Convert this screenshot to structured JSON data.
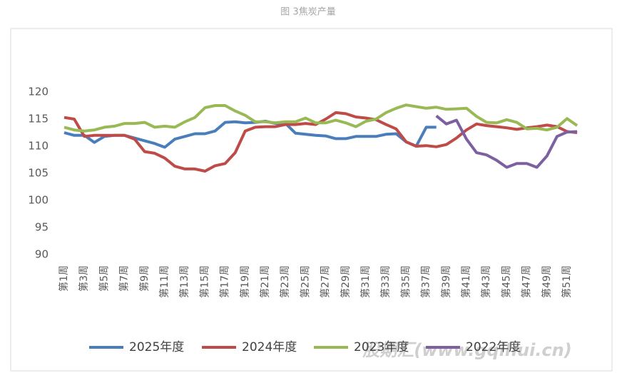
{
  "chart_data": {
    "type": "line",
    "title": "图 3焦炭产量",
    "watermark": "股期汇(www.gqihui.cn)",
    "categories": [
      "第1周",
      null,
      "第3周",
      null,
      "第5周",
      null,
      "第7周",
      null,
      "第9周",
      null,
      "第11周",
      null,
      "第13周",
      null,
      "第15周",
      null,
      "第17周",
      null,
      "第19周",
      null,
      "第21周",
      null,
      "第23周",
      null,
      "第25周",
      null,
      "第27周",
      null,
      "第29周",
      null,
      "第31周",
      null,
      "第33周",
      null,
      "第35周",
      null,
      "第37周",
      null,
      "第39周",
      null,
      "第41周",
      null,
      "第43周",
      null,
      "第45周",
      null,
      "第47周",
      null,
      "第49周",
      null,
      "第51周",
      null
    ],
    "ylim": [
      90,
      120
    ],
    "yticks": [
      90,
      95,
      100,
      105,
      110,
      115,
      120
    ],
    "grid": false,
    "series": [
      {
        "name": "2025年度",
        "color": "#4a7ebb",
        "values": [
          112.5,
          112,
          112,
          110.7,
          111.8,
          112,
          112,
          111.5,
          111,
          110.5,
          109.8,
          111.3,
          111.8,
          112.3,
          112.3,
          112.8,
          114.4,
          114.5,
          114.3,
          114.4,
          114.6,
          114.2,
          114.2,
          112.4,
          112.2,
          112,
          111.9,
          111.4,
          111.4,
          111.8,
          111.8,
          111.8,
          112.2,
          112.3,
          110.8,
          110,
          113.5,
          113.5,
          null,
          null,
          null,
          null,
          null,
          null,
          null,
          null,
          null,
          null,
          null,
          null,
          null,
          null
        ]
      },
      {
        "name": "2024年度",
        "color": "#be4b48",
        "values": [
          115.3,
          115,
          111.8,
          112,
          112,
          112,
          112,
          111.3,
          109,
          108.7,
          107.8,
          106.3,
          105.8,
          105.8,
          105.4,
          106.4,
          106.8,
          108.8,
          112.8,
          113.5,
          113.6,
          113.6,
          114,
          114,
          114.2,
          114,
          115,
          116.2,
          116,
          115.4,
          115.2,
          114.9,
          114,
          113.2,
          110.8,
          110,
          110.1,
          109.9,
          110.3,
          111.5,
          113,
          114.1,
          113.8,
          113.6,
          113.4,
          113.1,
          113.4,
          113.6,
          113.9,
          113.6,
          112.7,
          112.5
        ]
      },
      {
        "name": "2023年度",
        "color": "#98b954",
        "values": [
          113.5,
          113,
          112.8,
          113,
          113.5,
          113.7,
          114.2,
          114.2,
          114.4,
          113.5,
          113.7,
          113.5,
          114.5,
          115.3,
          117.1,
          117.5,
          117.5,
          116.5,
          115.7,
          114.5,
          114.5,
          114.3,
          114.5,
          114.5,
          115.2,
          114.3,
          114.3,
          114.8,
          114.3,
          113.6,
          114.6,
          115,
          116.2,
          117,
          117.6,
          117.3,
          117,
          117.2,
          116.8,
          116.9,
          117,
          115.5,
          114.4,
          114.3,
          114.9,
          114.4,
          113.2,
          113.3,
          113,
          113.5,
          115.1,
          113.8
        ]
      },
      {
        "name": "2022年度",
        "color": "#7d60a0",
        "values": [
          null,
          null,
          null,
          null,
          null,
          null,
          null,
          null,
          null,
          null,
          null,
          null,
          null,
          null,
          null,
          null,
          null,
          null,
          null,
          null,
          null,
          null,
          null,
          null,
          null,
          null,
          null,
          null,
          null,
          null,
          null,
          null,
          null,
          null,
          null,
          null,
          null,
          115.6,
          114.1,
          114.8,
          111.3,
          108.8,
          108.4,
          107.4,
          106.1,
          106.8,
          106.8,
          106.1,
          108.2,
          111.8,
          112.6,
          112.7
        ]
      }
    ]
  }
}
